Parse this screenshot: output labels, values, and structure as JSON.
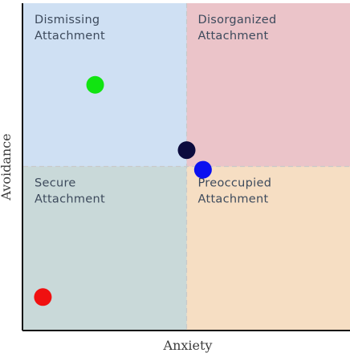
{
  "chart_data": {
    "type": "scatter",
    "xlabel": "Anxiety",
    "ylabel": "Avoidance",
    "xlim": [
      0,
      100
    ],
    "ylim": [
      0,
      100
    ],
    "grid": false,
    "threshold": {
      "x": 50,
      "y": 50
    },
    "quadrants": [
      {
        "key": "dismissing",
        "line1": "Dismissing",
        "line2": "Attachment",
        "color": "#cfe0f3"
      },
      {
        "key": "disorganized",
        "line1": "Disorganized",
        "line2": "Attachment",
        "color": "#ebc4c9"
      },
      {
        "key": "secure",
        "line1": "Secure",
        "line2": "Attachment",
        "color": "#c9d9d9"
      },
      {
        "key": "preoccupied",
        "line1": "Preoccupied",
        "line2": "Attachment",
        "color": "#f6dec3"
      }
    ],
    "points": [
      {
        "key": "green",
        "x": 22,
        "y": 75,
        "color": "#11e411"
      },
      {
        "key": "navy",
        "x": 50,
        "y": 55,
        "color": "#0b0b3d"
      },
      {
        "key": "blue",
        "x": 55,
        "y": 49,
        "color": "#0b10f0"
      },
      {
        "key": "red",
        "x": 6,
        "y": 10,
        "color": "#f01010"
      }
    ]
  }
}
